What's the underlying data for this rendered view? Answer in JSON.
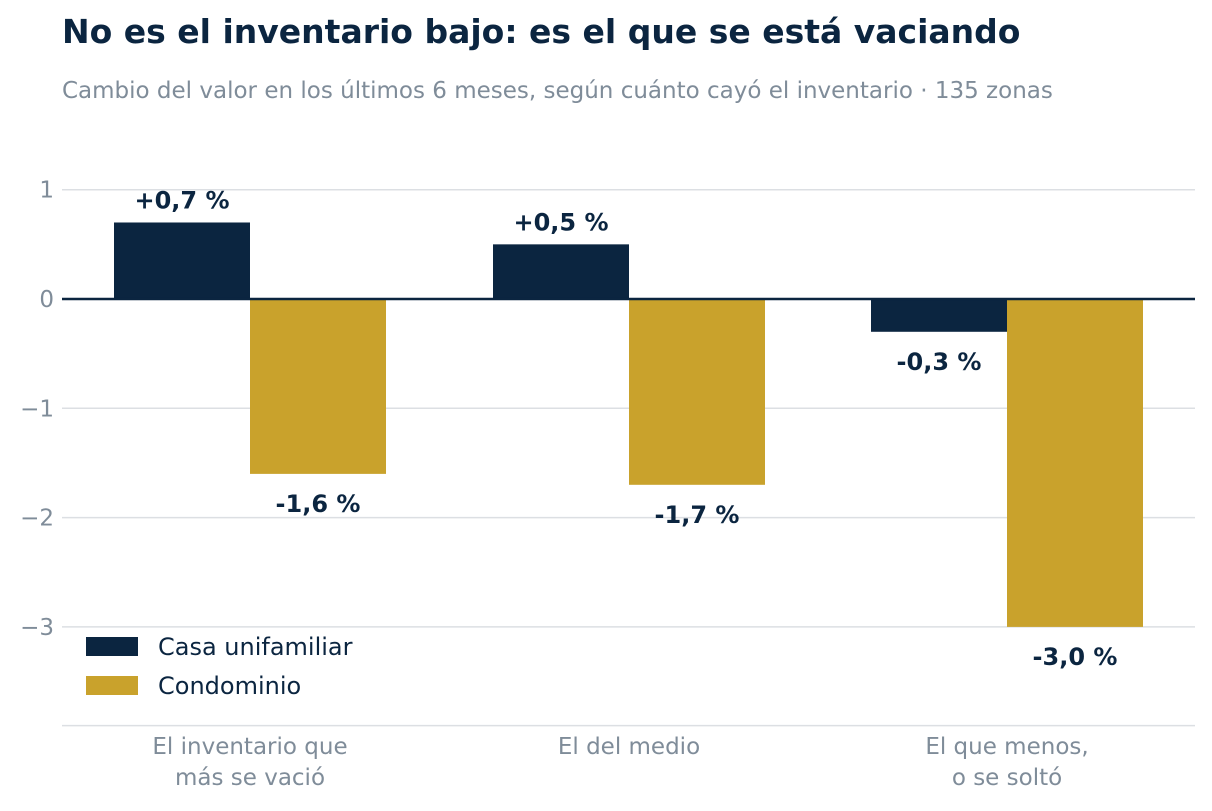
{
  "title": "No es el inventario bajo: es el que se está vaciando",
  "subtitle": "Cambio del valor en los últimos 6 meses, según cuánto cayó el inventario · 135 zonas",
  "chart_data": {
    "type": "bar",
    "categories": [
      [
        "El inventario que",
        "más se vació"
      ],
      [
        "El del medio"
      ],
      [
        "El que menos,",
        "o se soltó"
      ]
    ],
    "series": [
      {
        "name": "Casa unifamiliar",
        "color": "#0b2540",
        "values": [
          0.7,
          0.5,
          -0.3
        ],
        "labels": [
          "+0,7 %",
          "+0,5 %",
          "-0,3 %"
        ]
      },
      {
        "name": "Condominio",
        "color": "#c9a22c",
        "values": [
          -1.6,
          -1.7,
          -3.0
        ],
        "labels": [
          "-1,6 %",
          "-1,7 %",
          "-3,0 %"
        ]
      }
    ],
    "yticks": [
      1,
      0,
      -1,
      -2,
      -3
    ],
    "ytick_labels": [
      "1",
      "0",
      "−1",
      "−2",
      "−3"
    ],
    "ylim": [
      -3.9,
      1.25
    ],
    "grid": true,
    "legend_position": "bottom-left"
  }
}
